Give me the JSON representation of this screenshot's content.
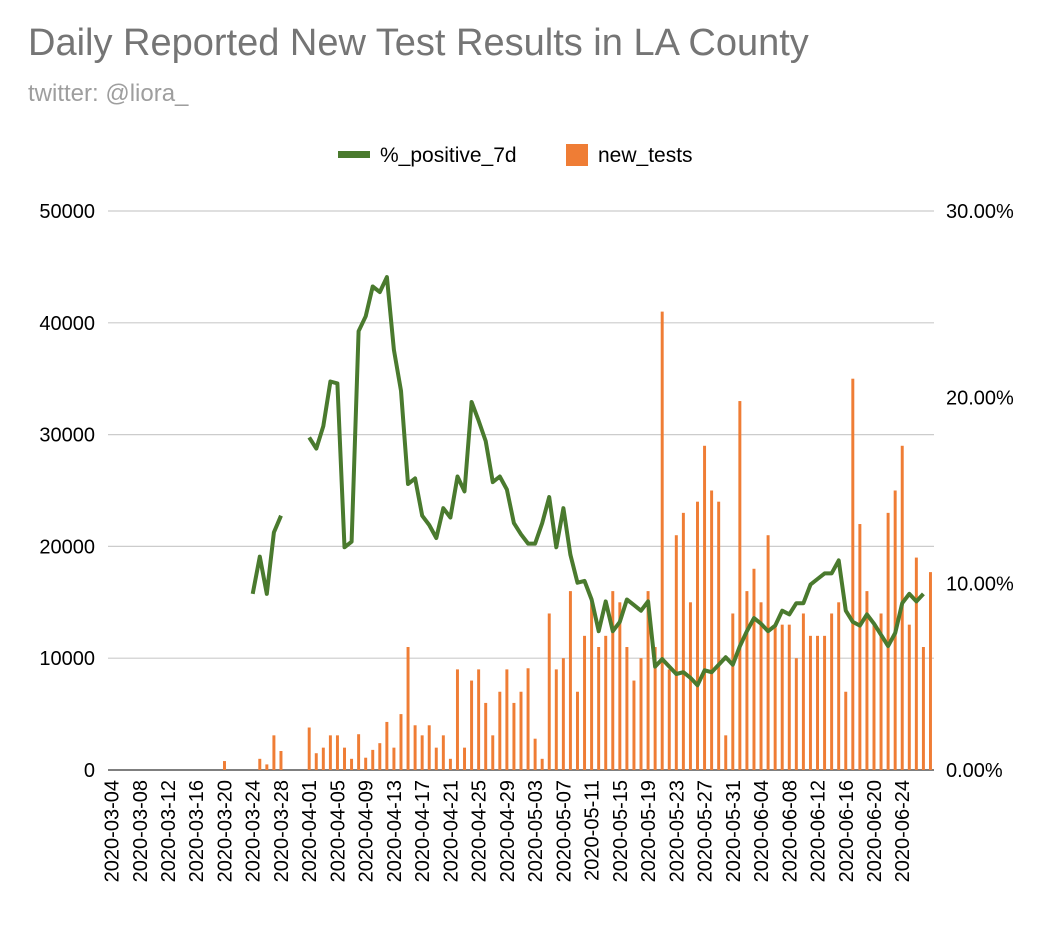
{
  "title": "Daily Reported New Test Results in LA County",
  "subtitle": "twitter: @liora_",
  "chart_data": {
    "type": "bar+line",
    "legend_position": "top",
    "grid": true,
    "y_left": {
      "ylim": [
        0,
        50000
      ],
      "ticks": [
        "0",
        "10000",
        "20000",
        "30000",
        "40000",
        "50000"
      ]
    },
    "y_right": {
      "ylim": [
        0,
        0.3
      ],
      "ticks": [
        "0.00%",
        "10.00%",
        "20.00%",
        "30.00%"
      ]
    },
    "x_tick_labels": [
      "2020-03-04",
      "2020-03-08",
      "2020-03-12",
      "2020-03-16",
      "2020-03-20",
      "2020-03-24",
      "2020-03-28",
      "2020-04-01",
      "2020-04-05",
      "2020-04-09",
      "2020-04-13",
      "2020-04-17",
      "2020-04-21",
      "2020-04-25",
      "2020-04-29",
      "2020-05-03",
      "2020-05-07",
      "2020-05-11",
      "2020-05-15",
      "2020-05-19",
      "2020-05-23",
      "2020-05-27",
      "2020-05-31",
      "2020-06-04",
      "2020-06-08",
      "2020-06-12",
      "2020-06-16",
      "2020-06-20",
      "2020-06-24"
    ],
    "x_start": "2020-03-04",
    "x_end": "2020-06-25",
    "series": [
      {
        "name": "%_positive_7d",
        "kind": "line",
        "axis": "right",
        "color": "#4a7a2e",
        "values": [
          null,
          null,
          null,
          null,
          null,
          null,
          null,
          null,
          null,
          null,
          null,
          null,
          null,
          null,
          null,
          null,
          null,
          null,
          null,
          null,
          0.0945,
          0.1145,
          0.0945,
          0.1275,
          0.1365,
          null,
          null,
          null,
          0.1785,
          0.1725,
          0.1845,
          0.2085,
          0.2075,
          0.1195,
          0.1225,
          0.2355,
          0.2435,
          0.2595,
          0.2565,
          0.2645,
          0.2255,
          0.2035,
          0.1535,
          0.1565,
          0.1365,
          0.1315,
          0.1245,
          0.1405,
          0.1355,
          0.1575,
          0.1495,
          0.1975,
          0.1875,
          0.1765,
          0.1545,
          0.1575,
          0.1505,
          0.1325,
          0.1265,
          0.1215,
          0.1215,
          0.1325,
          0.1465,
          0.1195,
          0.1405,
          0.1155,
          0.1005,
          0.1015,
          0.0915,
          0.0745,
          0.0905,
          0.0745,
          0.0795,
          0.0915,
          0.0885,
          0.0855,
          0.0905,
          0.0555,
          0.0595,
          0.0555,
          0.0515,
          0.0525,
          0.0495,
          0.0455,
          0.0535,
          0.0525,
          0.0565,
          0.0605,
          0.0565,
          0.0665,
          0.0745,
          0.0815,
          0.0785,
          0.0745,
          0.0775,
          0.0855,
          0.0835,
          0.0895,
          0.0895,
          0.0995,
          0.1025,
          0.1055,
          0.1055,
          0.1125,
          0.0855,
          0.0795,
          0.0775,
          0.0835,
          0.0785,
          0.0725,
          0.0665,
          0.0735,
          0.0895,
          0.0945,
          0.0905,
          0.0945
        ]
      },
      {
        "name": "new_tests",
        "kind": "bar",
        "axis": "left",
        "color": "#ef7d35",
        "values": [
          0,
          0,
          0,
          0,
          0,
          0,
          0,
          0,
          0,
          0,
          0,
          0,
          0,
          0,
          0,
          0,
          800,
          0,
          0,
          0,
          0,
          1000,
          500,
          3100,
          1700,
          0,
          0,
          0,
          3800,
          1500,
          2000,
          3100,
          3100,
          2000,
          1000,
          3200,
          1100,
          1800,
          2400,
          4300,
          2000,
          5000,
          11000,
          4000,
          3100,
          4000,
          2000,
          3100,
          1000,
          9000,
          2000,
          8000,
          9000,
          6000,
          3100,
          7000,
          9000,
          6000,
          7000,
          9100,
          2800,
          1000,
          14000,
          9000,
          10000,
          16000,
          7000,
          12000,
          15000,
          11000,
          12000,
          16000,
          15000,
          11000,
          8000,
          10000,
          16000,
          11000,
          41000,
          9000,
          21000,
          23000,
          15000,
          24000,
          29000,
          25000,
          24000,
          3100,
          14000,
          33000,
          16000,
          18000,
          15000,
          21000,
          13000,
          13000,
          13000,
          10000,
          14000,
          12000,
          12000,
          12000,
          14000,
          15000,
          7000,
          35000,
          22000,
          16000,
          13000,
          14000,
          23000,
          25000,
          29000,
          13000,
          19000,
          11000,
          17700
        ]
      }
    ]
  }
}
